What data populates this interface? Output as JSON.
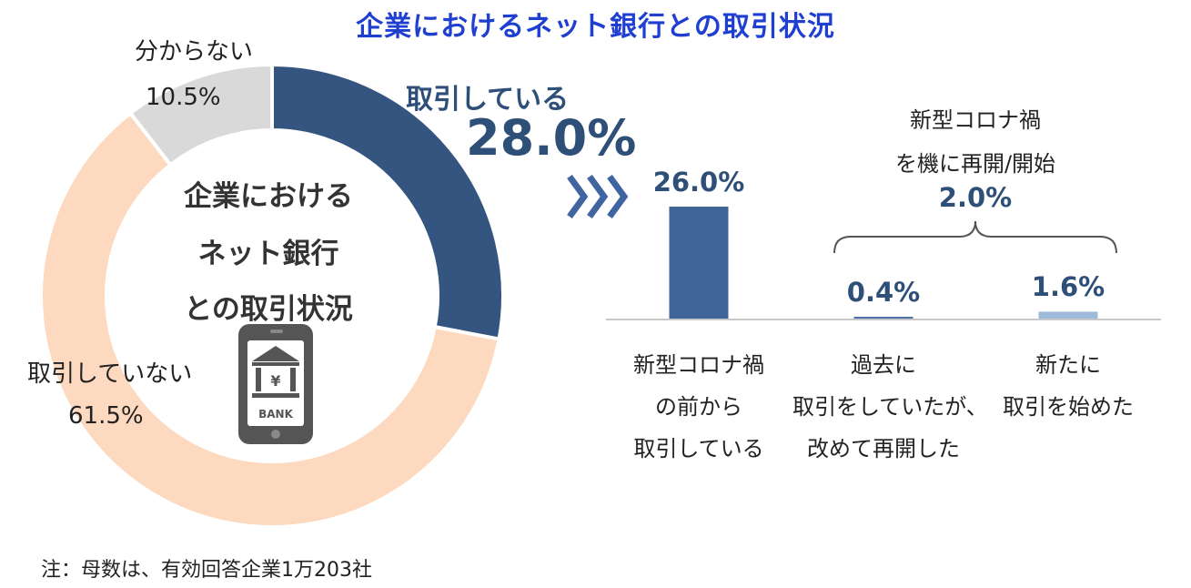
{
  "title": "企業におけるネット銀行との取引状況",
  "donut": {
    "center_lines": [
      "企業における",
      "ネット銀行",
      "との取引状況"
    ],
    "bank_text": "BANK",
    "yen_symbol": "¥",
    "colors": {
      "trading": "#33557f",
      "not_trading": "#fcd9bf",
      "unknown": "#d9d9d9"
    }
  },
  "labels": {
    "unknown_name": "分からない",
    "unknown_value": "10.5%",
    "not_trading_name": "取引していない",
    "not_trading_value": "61.5%",
    "trading_name": "取引している",
    "trading_value": "28.0%"
  },
  "bars": {
    "values_text": [
      "26.0%",
      "0.4%",
      "1.6%"
    ],
    "cat1": [
      "新型コロナ禍",
      "の前から",
      "取引している"
    ],
    "cat2": [
      "過去に",
      "取引をしていたが、",
      "改めて再開した"
    ],
    "cat3": [
      "新たに",
      "取引を始めた"
    ],
    "colors": [
      "#3e6498",
      "#4e73a8",
      "#9fb9d9"
    ]
  },
  "brace": {
    "lines": [
      "新型コロナ禍",
      "を機に再開/開始"
    ],
    "value": "2.0%"
  },
  "note": "注：母数は、有効回答企業1万203社",
  "chart_data": [
    {
      "type": "pie",
      "variant": "donut",
      "title": "企業におけるネット銀行との取引状況",
      "categories": [
        "取引している",
        "取引していない",
        "分からない"
      ],
      "values": [
        28.0,
        61.5,
        10.5
      ],
      "unit": "%"
    },
    {
      "type": "bar",
      "categories": [
        "新型コロナ禍の前から取引している",
        "過去に取引をしていたが、改めて再開した",
        "新たに取引を始めた"
      ],
      "values": [
        26.0,
        0.4,
        1.6
      ],
      "unit": "%",
      "annotations": [
        {
          "text": "新型コロナ禍を機に再開/開始",
          "value": 2.0
        }
      ]
    }
  ]
}
